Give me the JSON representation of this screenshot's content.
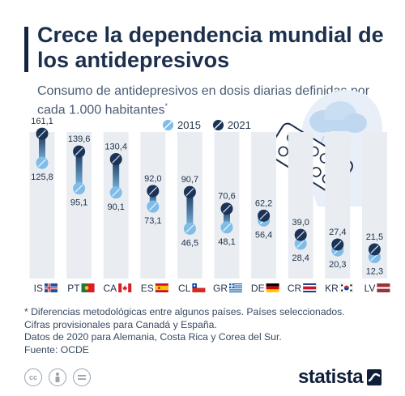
{
  "header": {
    "title": "Crece la dependencia mundial de los antidepresivos",
    "subtitle": "Consumo de antidepresivos en dosis diarias definidas por cada 1.000 habitantes",
    "subtitle_mark": "*"
  },
  "legend": {
    "label_2015": "2015",
    "label_2021": "2021"
  },
  "colors": {
    "c2015": "#7fbde8",
    "c2021": "#1a3357",
    "column_bg": "#e9edf2",
    "accent": "#12243f"
  },
  "chart_data": {
    "type": "dumbbell",
    "categories": [
      "IS",
      "PT",
      "CA",
      "ES",
      "CL",
      "GR",
      "DE",
      "CR",
      "KR",
      "LV"
    ],
    "series": [
      {
        "name": "2015",
        "values": [
          125.8,
          95.1,
          90.1,
          73.1,
          46.5,
          48.1,
          56.4,
          28.4,
          20.3,
          12.3
        ]
      },
      {
        "name": "2021",
        "values": [
          161.1,
          139.6,
          130.4,
          92.0,
          90.7,
          70.6,
          62.2,
          39.0,
          27.4,
          21.5
        ]
      }
    ],
    "value_labels_2015": [
      "125,8",
      "95,1",
      "90,1",
      "73,1",
      "46,5",
      "48,1",
      "56,4",
      "28,4",
      "20,3",
      "12,3"
    ],
    "value_labels_2021": [
      "161,1",
      "139,6",
      "130,4",
      "92,0",
      "90,7",
      "70,6",
      "62,2",
      "39,0",
      "27,4",
      "21,5"
    ],
    "flags": [
      "iceland-flag",
      "portugal-flag",
      "canada-flag",
      "spain-flag",
      "chile-flag",
      "greece-flag",
      "germany-flag",
      "costa-rica-flag",
      "south-korea-flag",
      "latvia-flag"
    ],
    "ylim": [
      0,
      170
    ],
    "grid": false,
    "legend_position": "top"
  },
  "illustration": {
    "icons": [
      "head-silhouette-icon",
      "storm-cloud-icon",
      "pill-blister-icon"
    ]
  },
  "notes": [
    "* Diferencias metodológicas entre algunos países. Países seleccionados.",
    "Cifras provisionales para Canadá y España.",
    "Datos de 2020 para Alemania, Costa Rica y Corea del Sur.",
    "Fuente: OCDE"
  ],
  "footer": {
    "license_icons": [
      "cc-icon",
      "attribution-icon",
      "no-derivatives-icon"
    ],
    "brand": "statista"
  }
}
